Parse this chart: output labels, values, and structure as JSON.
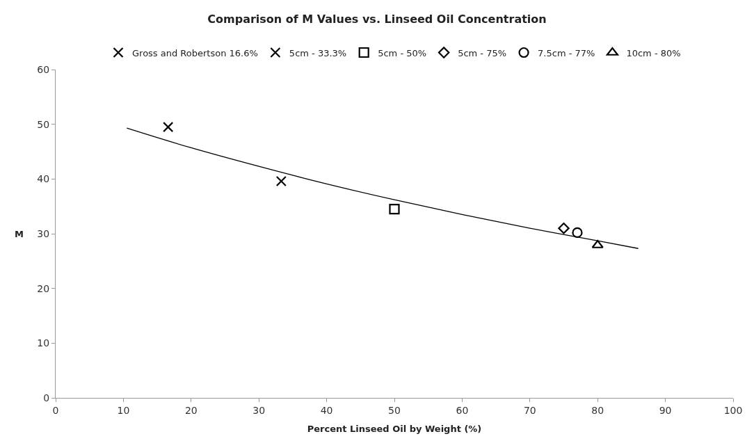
{
  "chart_data": {
    "type": "scatter",
    "title": "Comparison of M Values vs. Linseed Oil Concentration",
    "xlabel": "Percent Linseed Oil by Weight (%)",
    "ylabel": "M",
    "xlim": [
      0,
      100
    ],
    "xticks": [
      0,
      10,
      20,
      30,
      40,
      50,
      60,
      70,
      80,
      90,
      100
    ],
    "ylim": [
      0,
      60
    ],
    "yticks": [
      0,
      10,
      20,
      30,
      40,
      50,
      60
    ],
    "grid": false,
    "legend": "top",
    "series": [
      {
        "name": "Gross and Robertson 16.6%",
        "color": "#000000",
        "marker": "cross",
        "x": [
          16.6
        ],
        "values": [
          49.5
        ]
      },
      {
        "name": "5cm - 33.3%",
        "color": "#000000",
        "marker": "cross",
        "x": [
          33.3
        ],
        "values": [
          39.6
        ]
      },
      {
        "name": "5cm - 50%",
        "color": "#000000",
        "marker": "square",
        "x": [
          50
        ],
        "values": [
          34.5
        ]
      },
      {
        "name": "5cm - 75%",
        "color": "#000000",
        "marker": "diamond",
        "x": [
          75
        ],
        "values": [
          31.0
        ]
      },
      {
        "name": "7.5cm - 77%",
        "color": "#000000",
        "marker": "circle",
        "x": [
          77
        ],
        "values": [
          30.2
        ]
      },
      {
        "name": "10cm - 80%",
        "color": "#000000",
        "marker": "triangle",
        "x": [
          80
        ],
        "values": [
          27.9
        ]
      },
      {
        "type": "line",
        "color": "#000000",
        "marker": "none",
        "line_style": "solid",
        "x": [
          10.5,
          20,
          30,
          40,
          50,
          60,
          70,
          80,
          86
        ],
        "values": [
          49.3,
          45.7,
          42.3,
          39.1,
          36.2,
          33.5,
          31.0,
          28.7,
          27.3
        ]
      }
    ]
  }
}
